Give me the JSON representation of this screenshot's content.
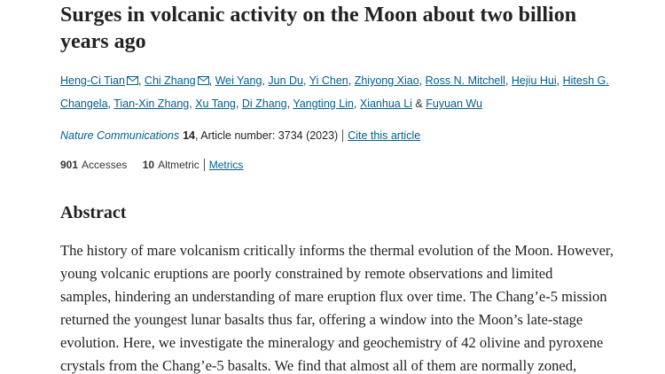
{
  "header": {
    "title": "Surges in volcanic activity on the Moon about two billion years ago",
    "authors": [
      {
        "name": "Heng-Ci Tian",
        "after": ","
      },
      {
        "name": "Chi Zhang",
        "after": ","
      },
      {
        "name": "Wei Yang",
        "after": ","
      },
      {
        "name": "Jun Du",
        "after": ","
      },
      {
        "name": "Yi Chen",
        "after": ","
      },
      {
        "name": "Zhiyong Xiao",
        "after": ","
      },
      {
        "name": "Ross N. Mitchell",
        "after": ","
      },
      {
        "name": "Hejiu Hui",
        "after": ","
      },
      {
        "name": "Hitesh G. Changela",
        "after": ","
      },
      {
        "name": "Tian-Xin Zhang",
        "after": ","
      },
      {
        "name": "Xu Tang",
        "after": ","
      },
      {
        "name": "Di Zhang",
        "after": ","
      },
      {
        "name": "Yangting Lin",
        "after": ","
      },
      {
        "name": "Xianhua Li",
        "after": "&"
      },
      {
        "name": "Fuyuan Wu"
      }
    ],
    "citation": {
      "journal": "Nature Communications",
      "volume": "14",
      "article_info": ", Article number: 3734 (2023)",
      "cite_link": "Cite this article"
    },
    "metrics": {
      "accesses_count": "901",
      "accesses_label": "Accesses",
      "altmetric_count": "10",
      "altmetric_label": "Altmetric",
      "metrics_link": "Metrics"
    }
  },
  "abstract": {
    "heading": "Abstract",
    "lines": [
      "The history of mare volcanism critically informs the thermal evolution of the Moon. However,",
      "young volcanic eruptions are poorly constrained by remote observations and limited",
      "samples, hindering an understanding of mare eruption flux over time. The Chang’e-5 mission",
      "returned the youngest lunar basalts thus far, offering a window into the Moon’s late-stage",
      "evolution. Here, we investigate the mineralogy and geochemistry of 42 olivine and pyroxene",
      "crystals from the Chang’e-5 basalts. We find that almost all of them are normally zoned,"
    ]
  }
}
